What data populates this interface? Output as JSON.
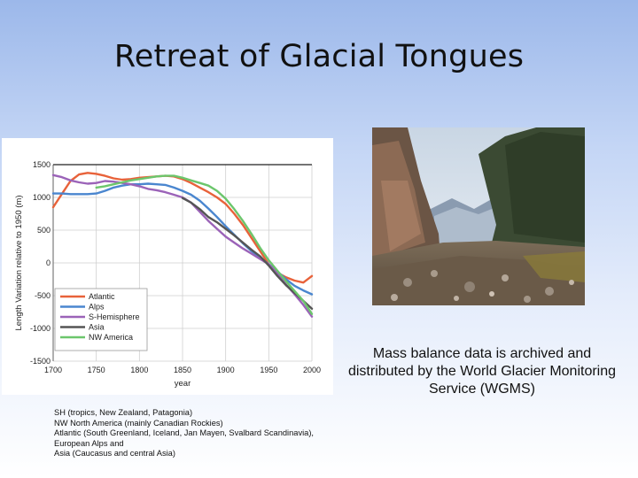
{
  "slide": {
    "title": "Retreat of Glacial Tongues",
    "caption": "Mass balance data is archived and distributed by the World Glacier Monitoring Service (WGMS)",
    "notes": [
      "SH (tropics, New Zealand, Patagonia)",
      "NW North America (mainly Canadian Rockies)",
      "Atlantic (South Greenland, Iceland, Jan Mayen, Svalbard Scandinavia),",
      "European Alps and",
      "Asia (Caucasus and central Asia)"
    ]
  },
  "photo": {
    "subject": "glacial valley with moraine and mountain slopes"
  },
  "chart_data": {
    "type": "line",
    "xlabel": "year",
    "ylabel": "Length Variation relative to 1950 (m)",
    "xlim": [
      1700,
      2000
    ],
    "ylim": [
      -1500,
      1500
    ],
    "x_ticks": [
      "1700",
      "1750",
      "1800",
      "1850",
      "1900",
      "1950",
      "2000"
    ],
    "y_ticks": [
      "1500",
      "1000",
      "500",
      "0",
      "-500",
      "-1000",
      "-1500"
    ],
    "grid": true,
    "legend_position": "bottom-left",
    "series": [
      {
        "name": "Atlantic",
        "color": "#e8623a",
        "x": [
          1700,
          1710,
          1720,
          1730,
          1740,
          1750,
          1760,
          1770,
          1780,
          1790,
          1800,
          1810,
          1820,
          1830,
          1840,
          1850,
          1860,
          1870,
          1880,
          1890,
          1900,
          1910,
          1920,
          1930,
          1940,
          1950,
          1960,
          1970,
          1980,
          1990,
          2000
        ],
        "y": [
          850,
          1050,
          1250,
          1350,
          1375,
          1360,
          1330,
          1290,
          1270,
          1280,
          1300,
          1310,
          1320,
          1330,
          1320,
          1280,
          1220,
          1150,
          1080,
          1000,
          900,
          750,
          580,
          380,
          180,
          -20,
          -150,
          -220,
          -270,
          -300,
          -200
        ]
      },
      {
        "name": "Alps",
        "color": "#4a86cf",
        "x": [
          1700,
          1710,
          1720,
          1730,
          1740,
          1750,
          1760,
          1770,
          1780,
          1790,
          1800,
          1810,
          1820,
          1830,
          1840,
          1850,
          1860,
          1870,
          1880,
          1890,
          1900,
          1910,
          1920,
          1930,
          1940,
          1950,
          1960,
          1970,
          1980,
          1990,
          2000
        ],
        "y": [
          1060,
          1060,
          1050,
          1050,
          1050,
          1060,
          1100,
          1150,
          1180,
          1200,
          1200,
          1210,
          1200,
          1190,
          1150,
          1100,
          1040,
          950,
          830,
          700,
          560,
          430,
          300,
          180,
          80,
          -20,
          -130,
          -250,
          -350,
          -420,
          -480
        ]
      },
      {
        "name": "S-Hemisphere",
        "color": "#9b63b8",
        "x": [
          1700,
          1710,
          1720,
          1730,
          1740,
          1750,
          1760,
          1770,
          1780,
          1790,
          1800,
          1810,
          1820,
          1830,
          1840,
          1850,
          1860,
          1870,
          1880,
          1890,
          1900,
          1910,
          1920,
          1930,
          1940,
          1950,
          1960,
          1970,
          1980,
          1990,
          2000
        ],
        "y": [
          1340,
          1310,
          1260,
          1230,
          1210,
          1220,
          1250,
          1240,
          1220,
          1200,
          1170,
          1130,
          1110,
          1080,
          1040,
          1000,
          920,
          780,
          640,
          520,
          400,
          310,
          220,
          140,
          60,
          -20,
          -160,
          -330,
          -480,
          -640,
          -820
        ]
      },
      {
        "name": "Asia",
        "color": "#555555",
        "x": [
          1850,
          1860,
          1870,
          1880,
          1890,
          1900,
          1910,
          1920,
          1930,
          1940,
          1950,
          1960,
          1970,
          1980,
          1990,
          2000
        ],
        "y": [
          990,
          920,
          820,
          700,
          620,
          520,
          420,
          310,
          200,
          100,
          -40,
          -200,
          -340,
          -460,
          -580,
          -700
        ]
      },
      {
        "name": "NW America",
        "color": "#6cc66c",
        "x": [
          1750,
          1760,
          1770,
          1780,
          1790,
          1800,
          1810,
          1820,
          1830,
          1840,
          1850,
          1860,
          1870,
          1880,
          1890,
          1900,
          1910,
          1920,
          1930,
          1940,
          1950,
          1960,
          1970,
          1980,
          1990,
          2000
        ],
        "y": [
          1150,
          1170,
          1200,
          1230,
          1260,
          1280,
          1300,
          1320,
          1330,
          1330,
          1300,
          1260,
          1220,
          1180,
          1100,
          980,
          820,
          640,
          440,
          230,
          40,
          -120,
          -280,
          -430,
          -580,
          -780
        ]
      }
    ]
  }
}
